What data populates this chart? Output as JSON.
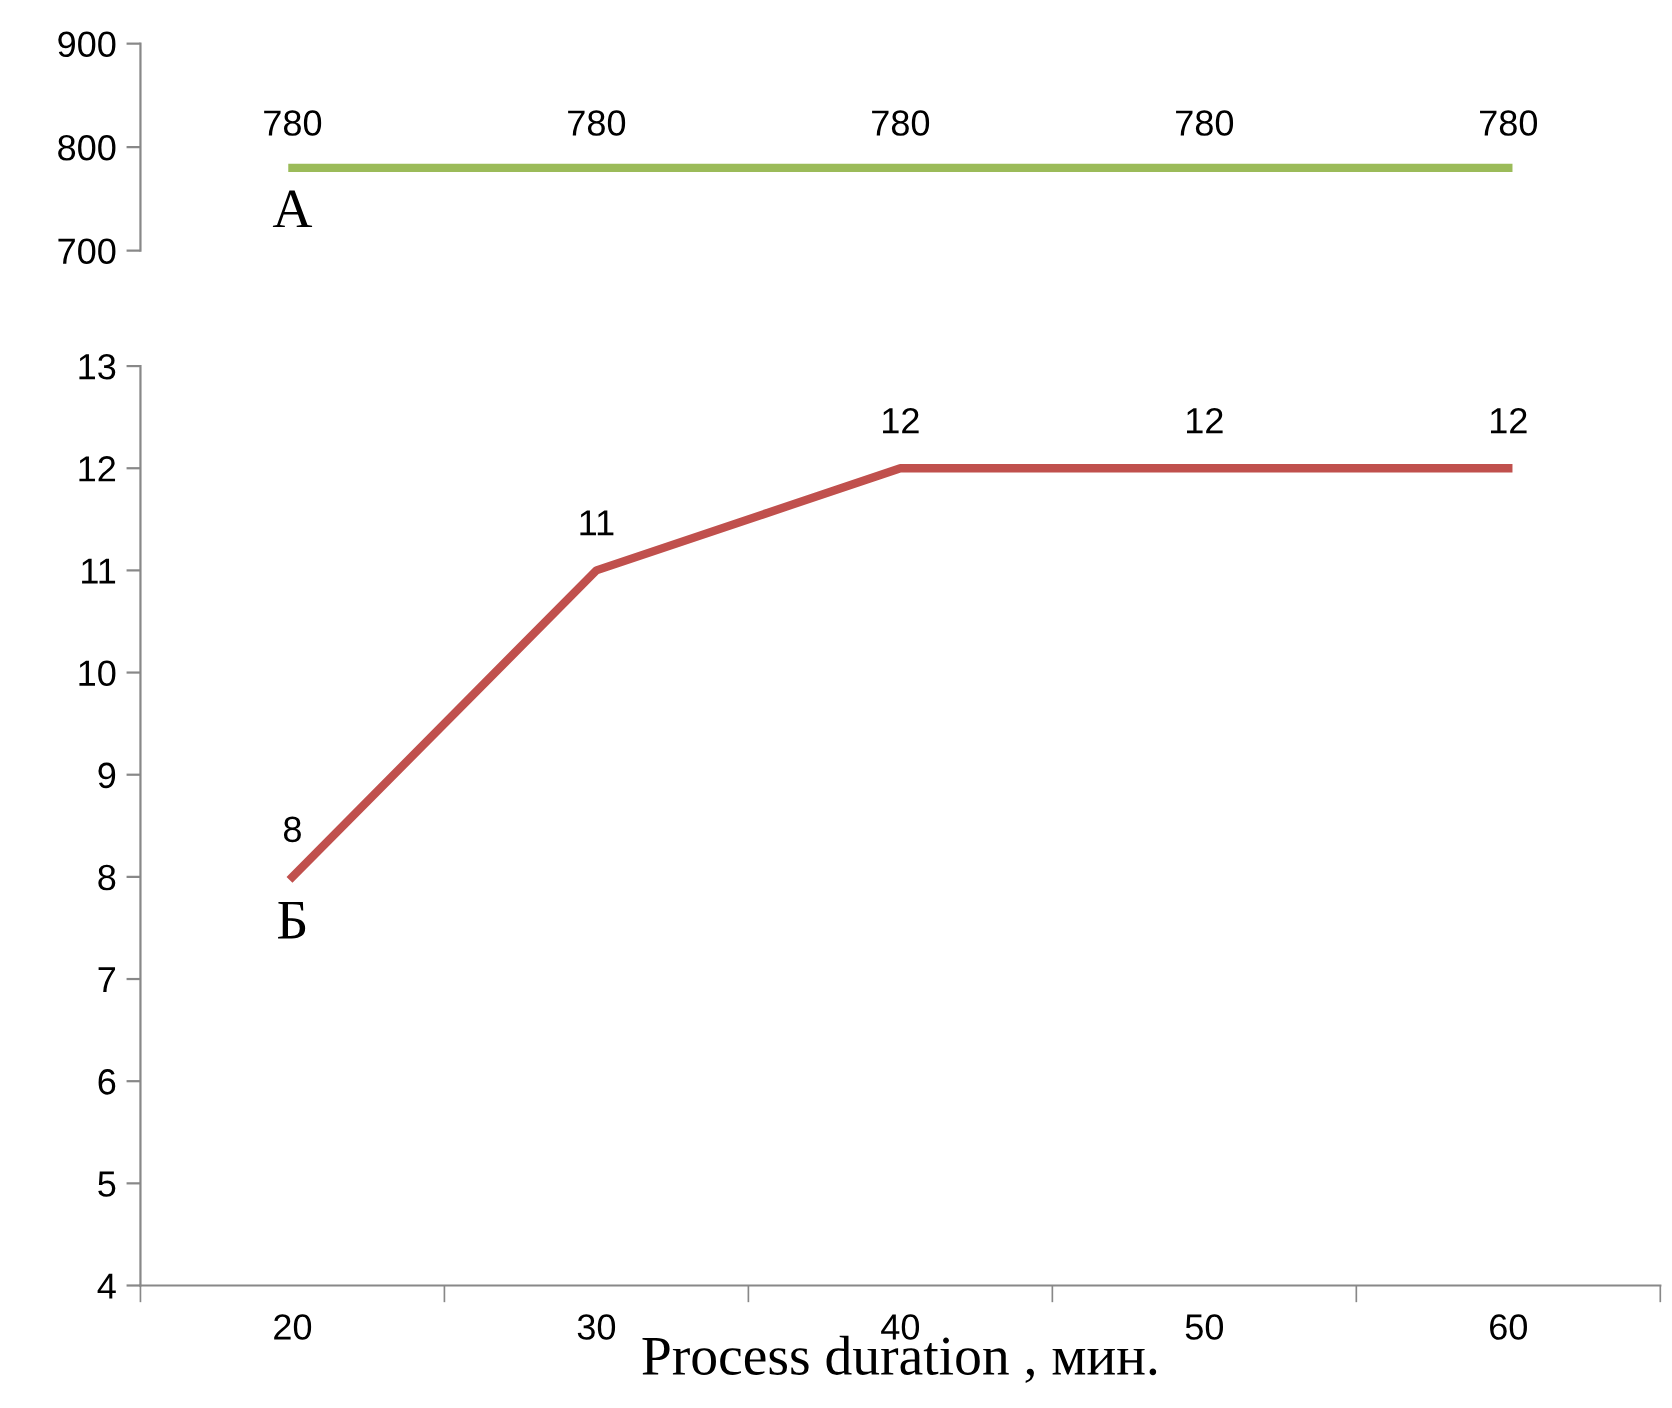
{
  "chart_data": [
    {
      "type": "line",
      "categories": [
        null,
        null,
        null,
        null,
        null
      ],
      "series": [
        {
          "name": "А",
          "color": "#9bbb59",
          "values": [
            780,
            780,
            780,
            780,
            780
          ]
        }
      ],
      "ylim": [
        700,
        900
      ],
      "yticks": [
        700,
        800,
        900
      ],
      "data_labels": true,
      "tick_labels": "y",
      "grid": false,
      "legend": false,
      "marker": "none"
    },
    {
      "type": "line",
      "categories": [
        "20",
        "30",
        "40",
        "50",
        "60"
      ],
      "series": [
        {
          "name": "Б",
          "color": "#c0504d",
          "values": [
            8,
            11,
            12,
            12,
            12
          ]
        }
      ],
      "ylim": [
        4,
        13
      ],
      "yticks": [
        4,
        5,
        6,
        7,
        8,
        9,
        10,
        11,
        12,
        13
      ],
      "xlabel": "Process duration , мин.",
      "data_labels": true,
      "grid": false,
      "legend": false,
      "marker": "none"
    }
  ]
}
